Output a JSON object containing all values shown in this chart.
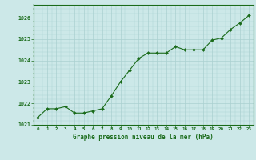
{
  "x": [
    0,
    1,
    2,
    3,
    4,
    5,
    6,
    7,
    8,
    9,
    10,
    11,
    12,
    13,
    14,
    15,
    16,
    17,
    18,
    19,
    20,
    21,
    22,
    23
  ],
  "y": [
    1021.35,
    1021.75,
    1021.75,
    1021.85,
    1021.55,
    1021.55,
    1021.65,
    1021.75,
    1022.35,
    1023.0,
    1023.55,
    1024.1,
    1024.35,
    1024.35,
    1024.35,
    1024.65,
    1024.5,
    1024.5,
    1024.5,
    1024.95,
    1025.05,
    1025.45,
    1025.75,
    1026.1
  ],
  "line_color": "#1a6b1a",
  "marker_color": "#1a6b1a",
  "bg_color": "#cce8e8",
  "grid_color": "#aad0d0",
  "title": "Graphe pression niveau de la mer (hPa)",
  "title_color": "#1a6b1a",
  "ylim": [
    1021.0,
    1026.6
  ],
  "yticks": [
    1021,
    1022,
    1023,
    1024,
    1025,
    1026
  ],
  "xticks": [
    0,
    1,
    2,
    3,
    4,
    5,
    6,
    7,
    8,
    9,
    10,
    11,
    12,
    13,
    14,
    15,
    16,
    17,
    18,
    19,
    20,
    21,
    22,
    23
  ],
  "xtick_labels": [
    "0",
    "1",
    "2",
    "3",
    "4",
    "5",
    "6",
    "7",
    "8",
    "9",
    "10",
    "11",
    "12",
    "13",
    "14",
    "15",
    "16",
    "17",
    "18",
    "19",
    "20",
    "21",
    "22",
    "23"
  ]
}
